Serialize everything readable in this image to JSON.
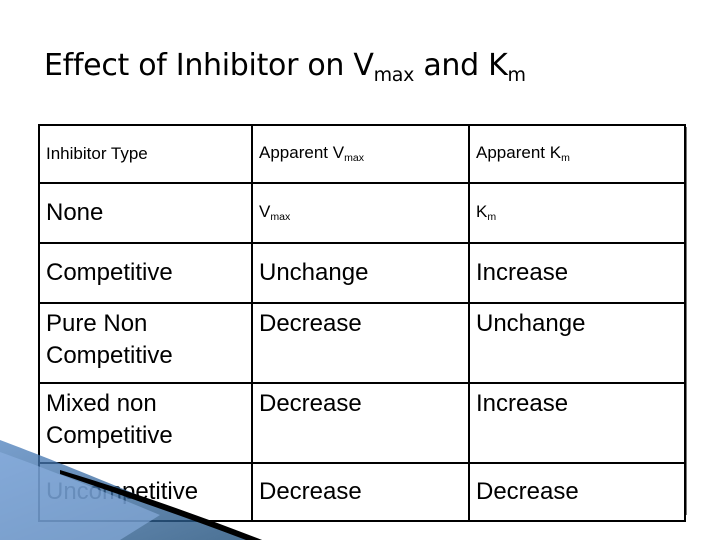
{
  "slide": {
    "title_prefix": "Effect of Inhibitor on V",
    "title_vsub": "max",
    "title_middle": " and K",
    "title_ksub": "m"
  },
  "table": {
    "header": {
      "type": "Inhibitor Type",
      "vmax_prefix": "Apparent V",
      "vmax_sub": "max",
      "km_prefix": "Apparent K",
      "km_sub": "m"
    },
    "rows": [
      {
        "type": "None",
        "vmax_prefix": "V",
        "vmax_sub": "max",
        "km_prefix": "K",
        "km_sub": "m"
      },
      {
        "type": "Competitive",
        "vmax": "Unchange",
        "km": "Increase"
      },
      {
        "type_line1": "Pure Non",
        "type_line2": "Competitive",
        "vmax": "Decrease",
        "km": "Unchange"
      },
      {
        "type_line1": "Mixed non",
        "type_line2": "Competitive",
        "vmax": "Decrease",
        "km": "Increase"
      },
      {
        "type": "Uncompetitive",
        "vmax": "Decrease",
        "km": "Decrease"
      }
    ]
  },
  "colors": {
    "decor_blue_dark": "#1f4e79",
    "decor_blue_light": "#4f81bd",
    "decor_black": "#000000"
  }
}
